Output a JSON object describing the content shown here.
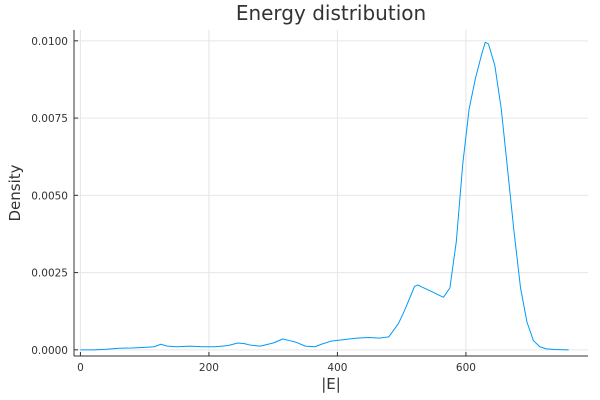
{
  "chart_data": {
    "type": "line",
    "title": "Energy distribution",
    "xlabel": "|E|",
    "ylabel": "Density",
    "xlim": [
      -10,
      790
    ],
    "ylim": [
      -0.0002,
      0.01035
    ],
    "x_ticks": [
      0,
      200,
      400,
      600
    ],
    "x_tick_labels": [
      "0",
      "200",
      "400",
      "600"
    ],
    "y_ticks": [
      0.0,
      0.0025,
      0.005,
      0.0075,
      0.01
    ],
    "y_tick_labels": [
      "0.0000",
      "0.0025",
      "0.0050",
      "0.0075",
      "0.0100"
    ],
    "grid": true,
    "legend": "none",
    "series_color": "#009AFA",
    "series": [
      {
        "x": [
          0,
          20,
          40,
          60,
          80,
          100,
          115,
          125,
          135,
          150,
          170,
          190,
          210,
          230,
          245,
          255,
          265,
          280,
          300,
          315,
          325,
          335,
          350,
          365,
          375,
          390,
          410,
          430,
          450,
          465,
          480,
          495,
          505,
          515,
          520,
          525,
          535,
          545,
          555,
          565,
          575,
          585,
          595,
          605,
          615,
          625,
          630,
          635,
          645,
          655,
          665,
          675,
          685,
          695,
          705,
          715,
          725,
          740,
          760
        ],
        "y": [
          0.0,
          0.0,
          2e-05,
          5e-05,
          6e-05,
          8e-05,
          0.0001,
          0.00018,
          0.00012,
          0.0001,
          0.00012,
          0.0001,
          0.0001,
          0.00014,
          0.00022,
          0.0002,
          0.00015,
          0.00012,
          0.00022,
          0.00035,
          0.0003,
          0.00025,
          0.00012,
          0.0001,
          0.00018,
          0.00028,
          0.00033,
          0.00038,
          0.0004,
          0.00038,
          0.00042,
          0.00085,
          0.0013,
          0.0018,
          0.00205,
          0.0021,
          0.002,
          0.0019,
          0.0018,
          0.0017,
          0.002,
          0.0035,
          0.006,
          0.0078,
          0.0088,
          0.0096,
          0.00995,
          0.0099,
          0.0092,
          0.0078,
          0.0058,
          0.0038,
          0.002,
          0.0009,
          0.0003,
          0.0001,
          3e-05,
          1e-05,
          0.0
        ]
      }
    ]
  }
}
